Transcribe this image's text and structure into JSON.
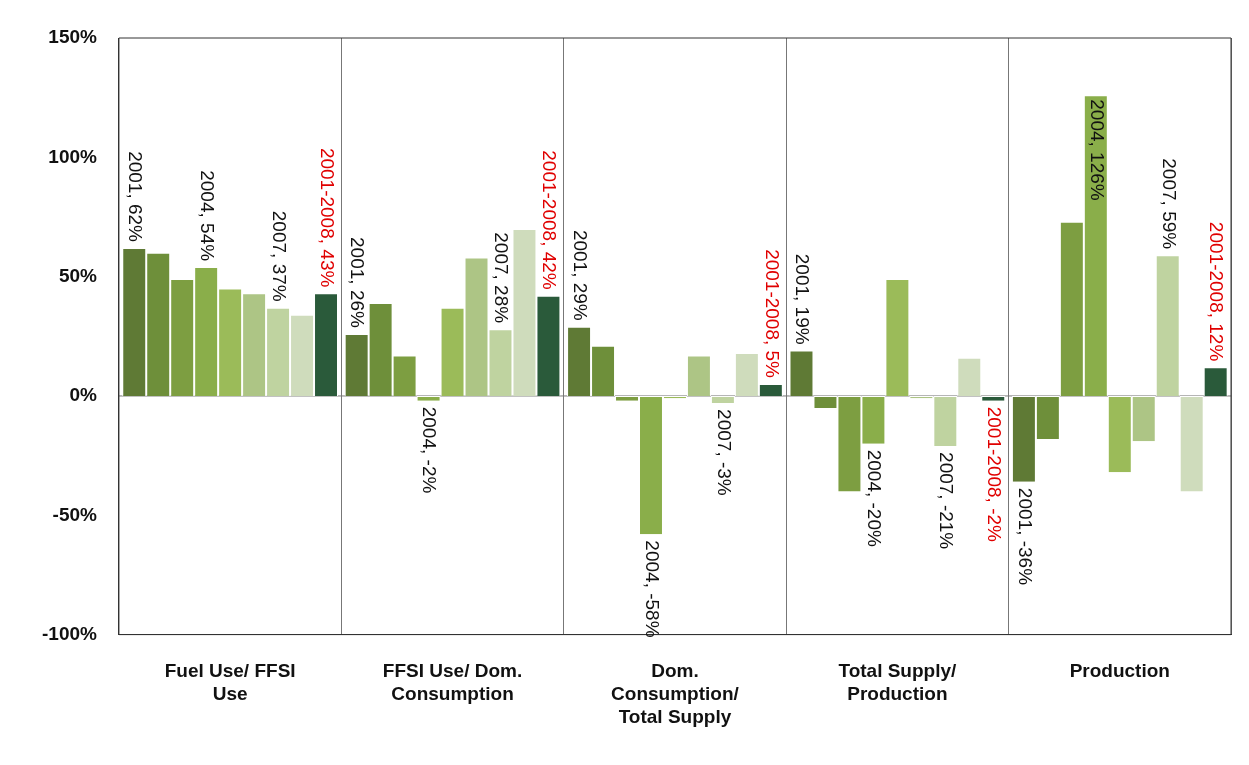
{
  "chart_data": {
    "type": "bar",
    "categories": [
      "Fuel Use/ FFSI Use",
      "FFSI Use/ Dom. Consumption",
      "Dom. Consumption/ Total Supply",
      "Total Supply/ Production",
      "Production"
    ],
    "series": [
      {
        "color": "#5f7a35",
        "values": [
          62,
          26,
          29,
          19,
          -36
        ],
        "value_labels": [
          "2001, 62%",
          "2001, 26%",
          "2001, 29%",
          "2001, 19%",
          "2001, -36%"
        ]
      },
      {
        "color": "#6e8f3a",
        "values": [
          60,
          39,
          21,
          -5,
          -18
        ]
      },
      {
        "color": "#7d9e41",
        "values": [
          49,
          17,
          -2,
          -40,
          73
        ]
      },
      {
        "color": "#8aae4a",
        "values": [
          54,
          -2,
          -58,
          -20,
          126
        ],
        "value_labels": [
          "2004, 54%",
          "2004, -2%",
          "2004, -58%",
          "2004, -20%",
          "2004, 126%"
        ]
      },
      {
        "color": "#9bbb59",
        "values": [
          45,
          37,
          -1,
          49,
          -32
        ]
      },
      {
        "color": "#adc585",
        "values": [
          43,
          58,
          17,
          -1,
          -19
        ]
      },
      {
        "color": "#bfd3a0",
        "values": [
          37,
          28,
          -3,
          -21,
          59
        ],
        "value_labels": [
          "2007, 37%",
          "2007, 28%",
          "2007, -3%",
          "2007, -21%",
          "2007, 59%"
        ]
      },
      {
        "color": "#cfdcbc",
        "values": [
          34,
          70,
          18,
          16,
          -40
        ]
      },
      {
        "color": "#2a5a3a",
        "values": [
          43,
          42,
          5,
          -2,
          12
        ],
        "value_labels": [
          "2001-2008, 43%",
          "2001-2008, 42%",
          "2001-2008, 5%",
          "2001-2008, -2%",
          "2001-2008, 12%"
        ]
      }
    ],
    "ylim": [
      -100,
      150
    ],
    "yticks": [
      {
        "value": -100,
        "label": "-100%"
      },
      {
        "value": -50,
        "label": "-50%"
      },
      {
        "value": 0,
        "label": "0%"
      },
      {
        "value": 50,
        "label": "50%"
      },
      {
        "value": 100,
        "label": "100%"
      },
      {
        "value": 150,
        "label": "150%"
      }
    ],
    "ref_lines": [
      {
        "axis": "y",
        "value": 0,
        "color": "#777777"
      }
    ],
    "grid": "x",
    "legend": false
  }
}
